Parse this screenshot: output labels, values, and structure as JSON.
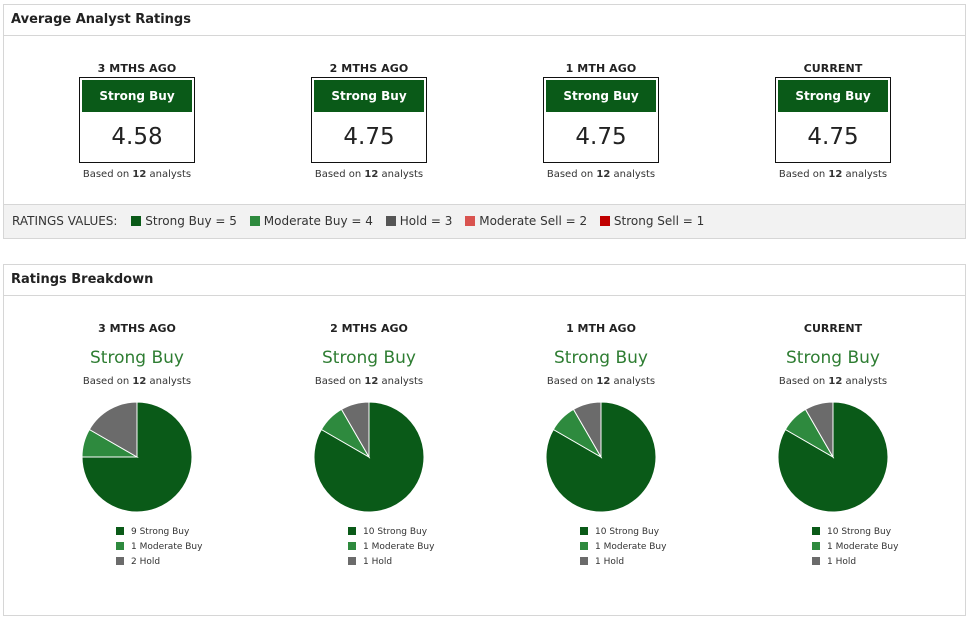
{
  "colors": {
    "strong_buy": "#0a5a18",
    "moderate_buy": "#2e8a3e",
    "hold": "#6b6b6b",
    "moderate_sell": "#d9534f",
    "strong_sell": "#c00000"
  },
  "avg": {
    "title": "Average Analyst Ratings",
    "cols": [
      {
        "period": "3 MTHS AGO",
        "label": "Strong Buy",
        "score": "4.58",
        "count": "12"
      },
      {
        "period": "2 MTHS AGO",
        "label": "Strong Buy",
        "score": "4.75",
        "count": "12"
      },
      {
        "period": "1 MTH AGO",
        "label": "Strong Buy",
        "score": "4.75",
        "count": "12"
      },
      {
        "period": "CURRENT",
        "label": "Strong Buy",
        "score": "4.75",
        "count": "12"
      }
    ],
    "basis_prefix": "Based on",
    "basis_suffix": "analysts"
  },
  "legend": {
    "label": "RATINGS VALUES:",
    "items": [
      {
        "text": "Strong Buy = 5",
        "color": "#0a5a18"
      },
      {
        "text": "Moderate Buy = 4",
        "color": "#2e8a3e"
      },
      {
        "text": "Hold = 3",
        "color": "#555555"
      },
      {
        "text": "Moderate Sell = 2",
        "color": "#d9534f"
      },
      {
        "text": "Strong Sell = 1",
        "color": "#c00000"
      }
    ]
  },
  "breakdown": {
    "title": "Ratings Breakdown",
    "cols": [
      {
        "period": "3 MTHS AGO",
        "rec": "Strong Buy",
        "count": "12",
        "slices": [
          {
            "label": "9 Strong Buy",
            "value": 9
          },
          {
            "label": "1 Moderate Buy",
            "value": 1
          },
          {
            "label": "2 Hold",
            "value": 2
          }
        ]
      },
      {
        "period": "2 MTHS AGO",
        "rec": "Strong Buy",
        "count": "12",
        "slices": [
          {
            "label": "10 Strong Buy",
            "value": 10
          },
          {
            "label": "1 Moderate Buy",
            "value": 1
          },
          {
            "label": "1 Hold",
            "value": 1
          }
        ]
      },
      {
        "period": "1 MTH AGO",
        "rec": "Strong Buy",
        "count": "12",
        "slices": [
          {
            "label": "10 Strong Buy",
            "value": 10
          },
          {
            "label": "1 Moderate Buy",
            "value": 1
          },
          {
            "label": "1 Hold",
            "value": 1
          }
        ]
      },
      {
        "period": "CURRENT",
        "rec": "Strong Buy",
        "count": "12",
        "slices": [
          {
            "label": "10 Strong Buy",
            "value": 10
          },
          {
            "label": "1 Moderate Buy",
            "value": 1
          },
          {
            "label": "1 Hold",
            "value": 1
          }
        ]
      }
    ]
  }
}
